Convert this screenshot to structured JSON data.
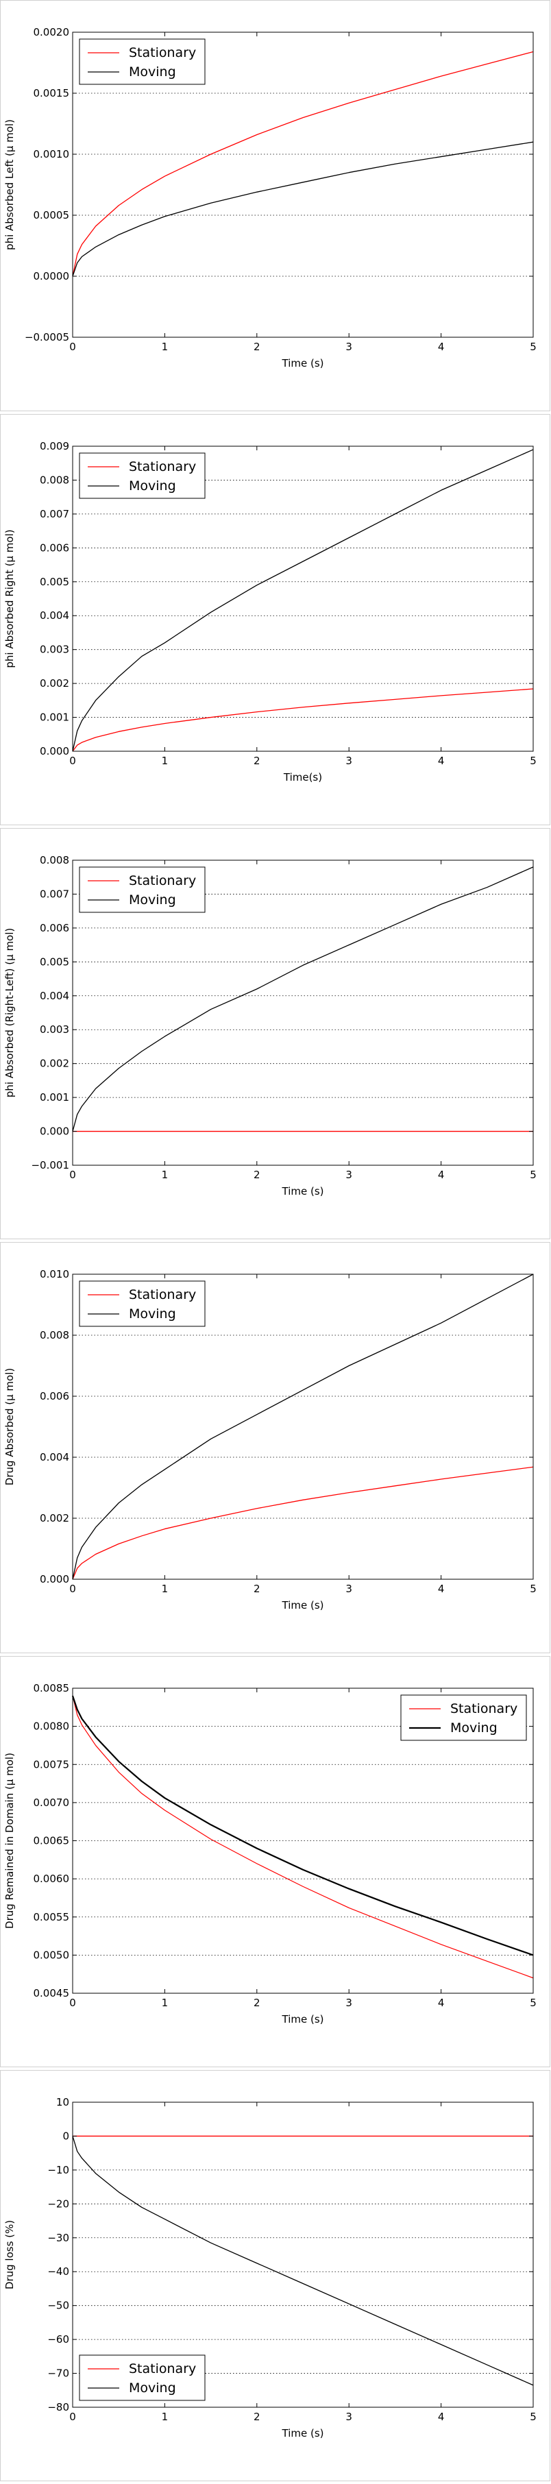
{
  "charts": [
    {
      "type": "line",
      "title": "",
      "xlabel": "Time (s)",
      "ylabel": "phi Absorbed Left (μ mol)",
      "xlim": [
        0,
        5
      ],
      "ylim": [
        -0.0005,
        0.002
      ],
      "xticks": [
        "0",
        "1",
        "2",
        "3",
        "4",
        "5"
      ],
      "yticks": [
        "−0.0005",
        "0.0000",
        "0.0005",
        "0.0010",
        "0.0015",
        "0.0020"
      ],
      "grid": "horizontal dotted",
      "legend": "upper-left",
      "series": [
        {
          "name": "Stationary",
          "color": "#ff0000",
          "x": [
            0,
            0.05,
            0.1,
            0.25,
            0.5,
            0.75,
            1,
            1.5,
            2,
            2.5,
            3,
            3.5,
            4,
            4.5,
            5
          ],
          "y": [
            0,
            0.00018,
            0.00026,
            0.00041,
            0.00058,
            0.00071,
            0.00082,
            0.001,
            0.00116,
            0.0013,
            0.00142,
            0.00153,
            0.00164,
            0.00174,
            0.00184
          ]
        },
        {
          "name": "Moving",
          "color": "#000000",
          "x": [
            0,
            0.05,
            0.1,
            0.25,
            0.5,
            0.75,
            1,
            1.5,
            2,
            2.5,
            3,
            3.5,
            4,
            4.5,
            5
          ],
          "y": [
            0,
            0.00011,
            0.00016,
            0.00024,
            0.00034,
            0.00042,
            0.00049,
            0.0006,
            0.00069,
            0.00077,
            0.00085,
            0.00092,
            0.00098,
            0.00104,
            0.0011
          ]
        }
      ]
    },
    {
      "type": "line",
      "title": "",
      "xlabel": "Time(s)",
      "ylabel": "phi Absorbed Right (μ mol)",
      "xlim": [
        0,
        5
      ],
      "ylim": [
        0,
        0.009
      ],
      "xticks": [
        "0",
        "1",
        "2",
        "3",
        "4",
        "5"
      ],
      "yticks": [
        "0.000",
        "0.001",
        "0.002",
        "0.003",
        "0.004",
        "0.005",
        "0.006",
        "0.007",
        "0.008",
        "0.009"
      ],
      "grid": "horizontal dotted",
      "legend": "upper-left",
      "series": [
        {
          "name": "Stationary",
          "color": "#ff0000",
          "x": [
            0,
            0.05,
            0.1,
            0.25,
            0.5,
            0.75,
            1,
            1.5,
            2,
            2.5,
            3,
            3.5,
            4,
            4.5,
            5
          ],
          "y": [
            0,
            0.00018,
            0.00026,
            0.00041,
            0.00058,
            0.00071,
            0.00082,
            0.001,
            0.00116,
            0.0013,
            0.00142,
            0.00153,
            0.00164,
            0.00174,
            0.00184
          ]
        },
        {
          "name": "Moving",
          "color": "#000000",
          "x": [
            0,
            0.05,
            0.1,
            0.25,
            0.5,
            0.75,
            1,
            1.5,
            2,
            2.5,
            3,
            3.5,
            4,
            4.5,
            5
          ],
          "y": [
            0,
            0.0006,
            0.0009,
            0.0015,
            0.0022,
            0.0028,
            0.0032,
            0.0041,
            0.0049,
            0.0056,
            0.0063,
            0.007,
            0.0077,
            0.0083,
            0.0089
          ]
        }
      ]
    },
    {
      "type": "line",
      "title": "",
      "xlabel": "Time (s)",
      "ylabel": "phi Absorbed (Right-Left) (μ mol)",
      "xlim": [
        0,
        5
      ],
      "ylim": [
        -0.001,
        0.008
      ],
      "xticks": [
        "0",
        "1",
        "2",
        "3",
        "4",
        "5"
      ],
      "yticks": [
        "−0.001",
        "0.000",
        "0.001",
        "0.002",
        "0.003",
        "0.004",
        "0.005",
        "0.006",
        "0.007",
        "0.008"
      ],
      "grid": "horizontal dotted",
      "legend": "upper-left",
      "series": [
        {
          "name": "Stationary",
          "color": "#ff0000",
          "x": [
            0,
            1,
            2,
            3,
            4,
            5
          ],
          "y": [
            0,
            0,
            0,
            0,
            0,
            0
          ]
        },
        {
          "name": "Moving",
          "color": "#000000",
          "x": [
            0,
            0.05,
            0.1,
            0.25,
            0.5,
            0.75,
            1,
            1.5,
            2,
            2.5,
            3,
            3.5,
            4,
            4.5,
            5
          ],
          "y": [
            0,
            0.0005,
            0.00074,
            0.00126,
            0.00186,
            0.00236,
            0.0028,
            0.0036,
            0.0042,
            0.0049,
            0.0055,
            0.0061,
            0.0067,
            0.0072,
            0.0078
          ]
        }
      ]
    },
    {
      "type": "line",
      "title": "",
      "xlabel": "Time (s)",
      "ylabel": "Drug Absorbed (μ mol)",
      "xlim": [
        0,
        5
      ],
      "ylim": [
        0,
        0.01
      ],
      "xticks": [
        "0",
        "1",
        "2",
        "3",
        "4",
        "5"
      ],
      "yticks": [
        "0.000",
        "0.002",
        "0.004",
        "0.006",
        "0.008",
        "0.010"
      ],
      "grid": "horizontal dotted",
      "legend": "upper-left",
      "series": [
        {
          "name": "Stationary",
          "color": "#ff0000",
          "x": [
            0,
            0.05,
            0.1,
            0.25,
            0.5,
            0.75,
            1,
            1.5,
            2,
            2.5,
            3,
            3.5,
            4,
            4.5,
            5
          ],
          "y": [
            0,
            0.00036,
            0.00052,
            0.00082,
            0.00116,
            0.00142,
            0.00165,
            0.002,
            0.00232,
            0.0026,
            0.00284,
            0.00306,
            0.00328,
            0.00348,
            0.00368
          ]
        },
        {
          "name": "Moving",
          "color": "#000000",
          "x": [
            0,
            0.05,
            0.1,
            0.25,
            0.5,
            0.75,
            1,
            1.5,
            2,
            2.5,
            3,
            3.5,
            4,
            4.5,
            5
          ],
          "y": [
            0,
            0.0007,
            0.00105,
            0.0017,
            0.0025,
            0.0031,
            0.0036,
            0.0046,
            0.0054,
            0.0062,
            0.007,
            0.0077,
            0.0084,
            0.0092,
            0.01
          ]
        }
      ]
    },
    {
      "type": "line",
      "title": "",
      "xlabel": "Time (s)",
      "ylabel": "Drug Remained in Domain (μ mol)",
      "xlim": [
        0,
        5
      ],
      "ylim": [
        0.0045,
        0.0085
      ],
      "xticks": [
        "0",
        "1",
        "2",
        "3",
        "4",
        "5"
      ],
      "yticks": [
        "0.0045",
        "0.0050",
        "0.0055",
        "0.0060",
        "0.0065",
        "0.0070",
        "0.0075",
        "0.0080",
        "0.0085"
      ],
      "grid": "horizontal dotted",
      "legend": "upper-right",
      "series": [
        {
          "name": "Stationary",
          "color": "#ff0000",
          "width": 1.2,
          "x": [
            0,
            0.05,
            0.1,
            0.25,
            0.5,
            0.75,
            1,
            1.5,
            2,
            2.5,
            3,
            3.5,
            4,
            4.5,
            5
          ],
          "y": [
            0.0084,
            0.00815,
            0.00802,
            0.00775,
            0.0074,
            0.00712,
            0.0069,
            0.00652,
            0.0062,
            0.0059,
            0.00562,
            0.00538,
            0.00514,
            0.00492,
            0.0047
          ]
        },
        {
          "name": "Moving",
          "color": "#000000",
          "width": 2.2,
          "x": [
            0,
            0.05,
            0.1,
            0.25,
            0.5,
            0.75,
            1,
            1.5,
            2,
            2.5,
            3,
            3.5,
            4,
            4.5,
            5
          ],
          "y": [
            0.0084,
            0.00822,
            0.0081,
            0.00786,
            0.00754,
            0.00728,
            0.00706,
            0.00671,
            0.0064,
            0.00612,
            0.00587,
            0.00564,
            0.00543,
            0.00521,
            0.005
          ]
        }
      ]
    },
    {
      "type": "line",
      "title": "",
      "xlabel": "Time (s)",
      "ylabel": "Drug loss (%)",
      "xlim": [
        0,
        5
      ],
      "ylim": [
        -80,
        10
      ],
      "xticks": [
        "0",
        "1",
        "2",
        "3",
        "4",
        "5"
      ],
      "yticks": [
        "−80",
        "−70",
        "−60",
        "−50",
        "−40",
        "−30",
        "−20",
        "−10",
        "0",
        "10"
      ],
      "grid": "horizontal dotted",
      "legend": "lower-left",
      "series": [
        {
          "name": "Stationary",
          "color": "#ff0000",
          "x": [
            0,
            1,
            2,
            3,
            4,
            5
          ],
          "y": [
            0,
            0,
            0,
            0,
            0,
            0
          ]
        },
        {
          "name": "Moving",
          "color": "#000000",
          "x": [
            0,
            0.05,
            0.1,
            0.25,
            0.5,
            0.75,
            1,
            1.5,
            2,
            2.5,
            3,
            3.5,
            4,
            4.5,
            5
          ],
          "y": [
            0,
            -4.5,
            -6.5,
            -11,
            -16.5,
            -21,
            -24.5,
            -31.5,
            -37.5,
            -43.5,
            -49.5,
            -55.5,
            -61.5,
            -67.5,
            -73.5
          ]
        }
      ]
    }
  ]
}
